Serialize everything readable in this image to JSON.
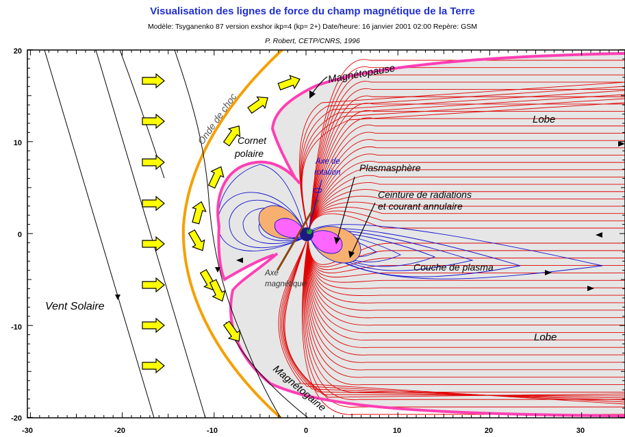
{
  "title": "Visualisation des lignes de force du champ magnétique de la Terre",
  "subtitle_model": "Modèle: Tsyganenko 87 version exshor ikp=4 (kp= 2+)    Date/heure: 16 janvier 2001  02:00    Repère: GSM",
  "subtitle_author": "P. Robert, CETP/CNRS, 1996",
  "axes": {
    "x_ticks": [
      "-30",
      "-20",
      "-10",
      "0",
      "10",
      "20",
      "30"
    ],
    "y_ticks": [
      "20",
      "10",
      "0",
      "-10",
      "-20"
    ],
    "xlim": [
      -30,
      34
    ],
    "ylim": [
      -20,
      20
    ]
  },
  "labels": {
    "magnetopause": "Magnétopause",
    "bow_shock": "Onde de choc",
    "polar_cusp_1": "Cornet",
    "polar_cusp_2": "polaire",
    "rotation_axis_1": "Axe de",
    "rotation_axis_2": "rotation",
    "plasmasphere": "Plasmasphère",
    "radiation_1": "Ceinture de radiations",
    "radiation_2": "et courant annulaire",
    "plasma_sheet": "Couche de plasma",
    "magnetic_axis_1": "Axe",
    "magnetic_axis_2": "magnétique",
    "solar_wind": "Vent Solaire",
    "magnetosheath": "Magnétogaine",
    "lobe_north": "Lobe",
    "lobe_south": "Lobe"
  },
  "colors": {
    "title": "#1f2fd0",
    "magnetopause": "#ff3fb4",
    "bow_shock": "#f5a000",
    "open_lines": "#e00000",
    "closed_lines": "#1010d0",
    "radiation_belt": "#f8b070",
    "plasmasphere": "#ff66ff",
    "magnetosphere_fill": "#e6e6e6",
    "arrows": "#ffff00",
    "earth": "#1a1a80"
  }
}
